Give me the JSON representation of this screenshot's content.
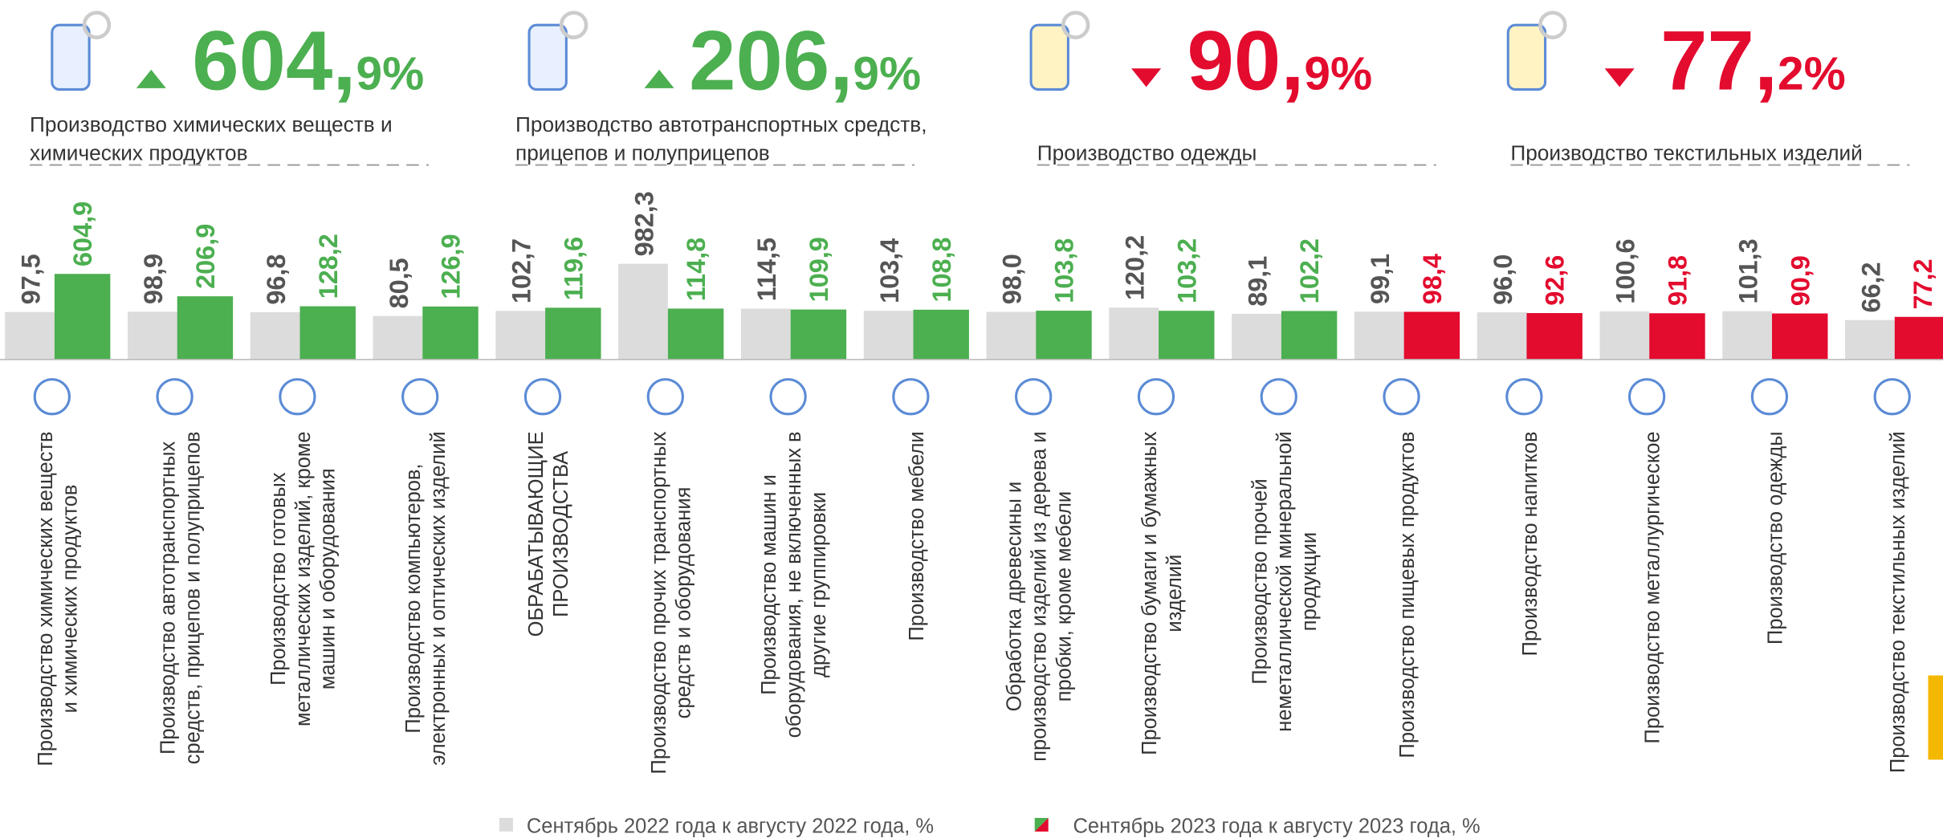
{
  "chart_data": {
    "type": "bar",
    "log_scale": true,
    "ylim": [
      10,
      1000
    ],
    "highlights": [
      {
        "value": 604.9,
        "label": "604,9%",
        "direction": "up",
        "color": "#4caf50",
        "label_lines": [
          "Производство химических веществ и",
          "химических продуктов"
        ]
      },
      {
        "value": 206.9,
        "label": "206,9%",
        "direction": "up",
        "color": "#4caf50",
        "label_lines": [
          "Производство автотранспортных средств,",
          "прицепов и полуприцепов"
        ]
      },
      {
        "value": 90.9,
        "label": "90,9%",
        "direction": "down",
        "color": "#e30b2e",
        "label_lines": [
          "Производство одежды"
        ]
      },
      {
        "value": 77.2,
        "label": "77,2%",
        "direction": "down",
        "color": "#e30b2e",
        "label_lines": [
          "Производство текстильных изделий"
        ]
      }
    ],
    "categories": [
      "Производство химических веществ\nи химических продуктов",
      "Производство автотранспортных\nсредств, прицепов и полуприцепов",
      "Производство готовых\nметаллических изделий, кроме\nмашин и оборудования",
      "Производство компьютеров,\nэлектронных и оптических изделий",
      "ОБРАБАТЫВАЮЩИЕ\nПРОИЗВОДСТВА",
      "Производство прочих транспортных\nсредств и оборудования",
      "Производство машин и\nоборудования, не включенных в\nдругие группировки",
      "Производство мебели",
      "Обработка древесины и\nпроизводство изделий из дерева и\nпробки, кроме мебели",
      "Производство бумаги и бумажных\nизделий",
      "Производство прочей\nнеметаллической минеральной\nпродукции",
      "Производство пищевых продуктов",
      "Производство напитков",
      "Производство металлургическое",
      "Производство одежды",
      "Производство текстильных изделий"
    ],
    "series": [
      {
        "name": "Сентябрь 2022 года к августу 2022 года, %",
        "color": "#dcdcdc",
        "label_color": "#555555",
        "values": [
          97.5,
          98.9,
          96.8,
          80.5,
          102.7,
          982.3,
          114.5,
          103.4,
          98.0,
          120.2,
          89.1,
          99.1,
          96.0,
          100.6,
          101.3,
          66.2
        ],
        "value_labels": [
          "97,5",
          "98,9",
          "96,8",
          "80,5",
          "102,7",
          "982,3",
          "114,5",
          "103,4",
          "98,0",
          "120,2",
          "89,1",
          "99,1",
          "96,0",
          "100,6",
          "101,3",
          "66,2"
        ]
      },
      {
        "name": "Сентябрь 2023 года к августу 2023 года, %",
        "colors": [
          "#4caf50",
          "#4caf50",
          "#4caf50",
          "#4caf50",
          "#4caf50",
          "#4caf50",
          "#4caf50",
          "#4caf50",
          "#4caf50",
          "#4caf50",
          "#4caf50",
          "#e30b2e",
          "#e30b2e",
          "#e30b2e",
          "#e30b2e",
          "#e30b2e"
        ],
        "values": [
          604.9,
          206.9,
          128.2,
          126.9,
          119.6,
          114.8,
          109.9,
          108.8,
          103.8,
          103.2,
          102.2,
          98.4,
          92.6,
          91.8,
          90.9,
          77.2
        ],
        "value_labels": [
          "604,9",
          "206,9",
          "128,2",
          "126,9",
          "119,6",
          "114,8",
          "109,9",
          "108,8",
          "103,8",
          "103,2",
          "102,2",
          "98,4",
          "92,6",
          "91,8",
          "90,9",
          "77,2"
        ]
      }
    ]
  }
}
